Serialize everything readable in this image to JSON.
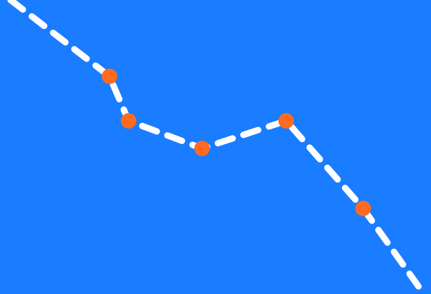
{
  "scene": {
    "background_color": "#1a7cff",
    "path_color": "#ffffff",
    "waypoint_color": "#ff6a21",
    "path_style": "dashed",
    "waypoint_count": 5
  }
}
